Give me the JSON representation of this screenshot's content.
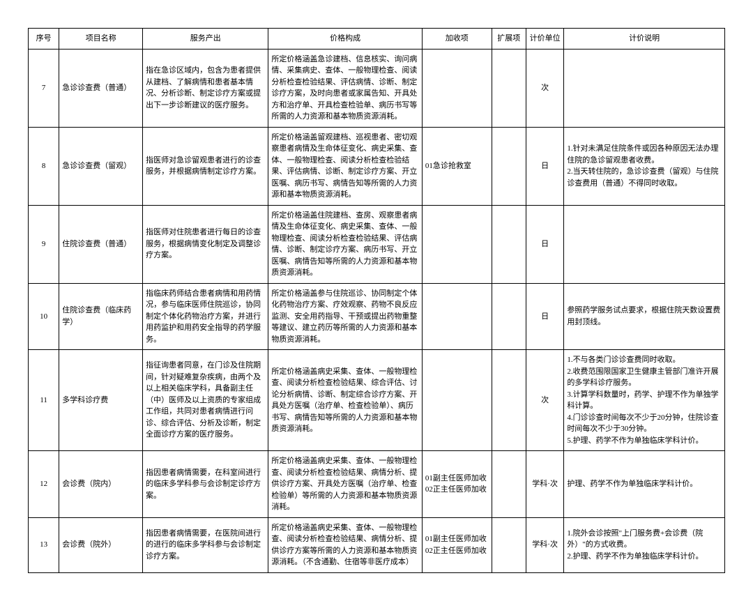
{
  "headers": {
    "seq": "序号",
    "name": "项目名称",
    "service": "服务产出",
    "price": "价格构成",
    "add": "加收项",
    "ext": "扩展项",
    "unit": "计价单位",
    "note": "计价说明"
  },
  "rows": [
    {
      "seq": "7",
      "name": "急诊诊查费（普通）",
      "service": "指在急诊区域内，包含为患者提供从建档、了解病情和患者基本情况、分析诊断、制定诊疗方案或提出下一步诊断建议的医疗服务。",
      "price": "所定价格涵盖急诊建档、信息核实、询问病情、采集病史、查体、一般物理检查、阅读分析检查检验结果、评估病情、诊断、制定诊疗方案，及时向患者或家属告知、开具处方和治疗单、开具检查检验单、病历书写等所需的人力资源和基本物质资源消耗。",
      "add": "",
      "ext": "",
      "unit": "次",
      "note": ""
    },
    {
      "seq": "8",
      "name": "急诊诊查费（留观）",
      "service": "指医师对急诊留观患者进行的诊查服务，并根据病情制定诊疗方案。",
      "price": "所定价格涵盖留观建档、巡视患者、密切观察患者病情及生命体征变化、病史采集、查体、一般物理检查、阅读分析检查检验结果、评估病情、诊断、制定诊疗方案、开立医嘱、病历书写、病情告知等所需的人力资源和基本物质资源消耗。",
      "add": "01急诊抢救室",
      "ext": "",
      "unit": "日",
      "note": "1.针对未满足住院条件或因各种原因无法办理住院的急诊留观患者收费。\n2.当天转住院的，急诊诊查费（留观）与住院诊查费用（普通）不得同时收取。"
    },
    {
      "seq": "9",
      "name": "住院诊查费（普通）",
      "service": "指医师对住院患者进行每日的诊查服务，根据病情变化制定及调整诊疗方案。",
      "price": "所定价格涵盖住院建档、查房、观察患者病情及生命体征变化、病史采集、查体、一般物理检查、阅读分析检查检验结果、评估病情、诊断、制定诊疗方案、病历书写、开立医嘱、病情告知等所需的人力资源和基本物质资源消耗。",
      "add": "",
      "ext": "",
      "unit": "日",
      "note": ""
    },
    {
      "seq": "10",
      "name": "住院诊查费（临床药学）",
      "service": "指临床药师结合患者病情和用药情况，参与临床医师住院巡诊，协同制定个体化药物治疗方案，并进行用药监护和用药安全指导的药学服务。",
      "price": "所定价格涵盖参与住院巡诊、协同制定个体化药物治疗方案、疗效观察、药物不良反应监测、安全用药指导、干预或提出药物重整等建议、建立药历等所需的人力资源和基本物质资源消耗。",
      "add": "",
      "ext": "",
      "unit": "日",
      "note": "参照药学服务试点要求，根据住院天数设置费用封顶线。"
    },
    {
      "seq": "11",
      "name": "多学科诊疗费",
      "service": "指征询患者同意，在门诊及住院期间，针对疑难复杂疾病，由两个及以上相关临床学科，具备副主任（中）医师及以上资质的专家组成工作组，共同对患者病情进行问诊、综合评估、分析及诊断，制定全面诊疗方案的医疗服务。",
      "price": "所定价格涵盖病史采集、查体、一般物理检查、阅读分析检查检验结果、综合评估、讨论分析病情、诊断、制定综合诊疗方案、开具处方医嘱（治疗单、检查检验单）、病历书写、病情告知等所需的人力资源和基本物质资源消耗。",
      "add": "",
      "ext": "",
      "unit": "次",
      "note": "1.不与各类门诊诊查费同时收取。\n2.收费范围限国家卫生健康主管部门准许开展的多学科诊疗服务。\n3.计算学科数量时，药学、护理不作为单独学科计算。\n4.门诊诊查时间每次不少于20分钟，住院诊查时间每次不少于30分钟。\n5.护理、药学不作为单独临床学科计价。"
    },
    {
      "seq": "12",
      "name": "会诊费（院内）",
      "service": "指因患者病情需要，在科室间进行的临床多学科参与会诊制定诊疗方案。",
      "price": "所定价格涵盖病史采集、查体、一般物理检查、阅读分析检查检验结果、病情分析、提供诊疗方案、开具处方医嘱（治疗单、检查检验单）等所需的人力资源和基本物质资源消耗。",
      "add": "01副主任医师加收\n02正主任医师加收",
      "ext": "",
      "unit": "学科·次",
      "note": "护理、药学不作为单独临床学科计价。"
    },
    {
      "seq": "13",
      "name": "会诊费（院外）",
      "service": "指因患者病情需要，在医院间进行的进行的临床多学科参与会诊制定诊疗方案。",
      "price": "所定价格涵盖病史采集、查体、一般物理检查、阅读分析检查检验结果、病情分析、提供诊疗方案等所需的人力资源和基本物质资源消耗。（不含通勤、住宿等非医疗成本）",
      "add": "01副主任医师加收\n02正主任医师加收",
      "ext": "",
      "unit": "学科·次",
      "note": "1.院外会诊按照\"上门服务费+会诊费（院外）\"的方式收费。\n2.护理、药学不作为单独临床学科计价。"
    }
  ]
}
